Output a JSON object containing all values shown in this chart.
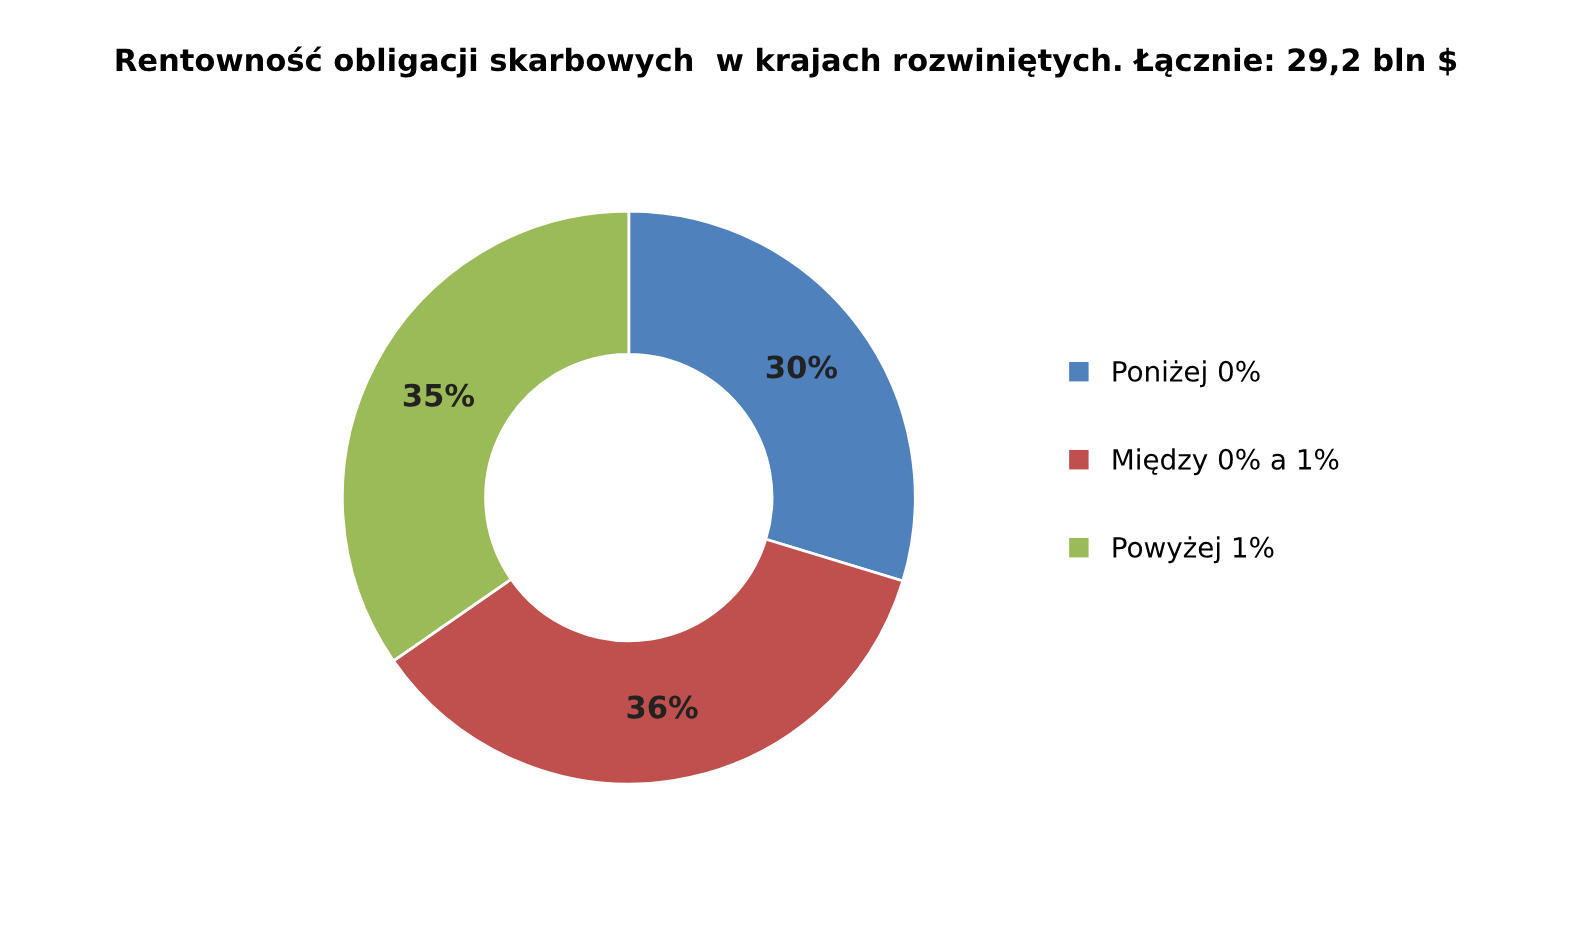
{
  "chart_data": {
    "type": "donut",
    "title": "Rentowność obligacji skarbowych  w krajach rozwiniętych. Łącznie: 29,2 bln $",
    "categories": [
      "Poniżej 0%",
      "Między 0% a 1%",
      "Powyżej 1%"
    ],
    "values": [
      30,
      36,
      35
    ],
    "value_labels": [
      "30%",
      "36%",
      "35%"
    ],
    "colors": [
      "#4f81bd",
      "#c0504d",
      "#9bbb59"
    ],
    "legend": "right"
  }
}
